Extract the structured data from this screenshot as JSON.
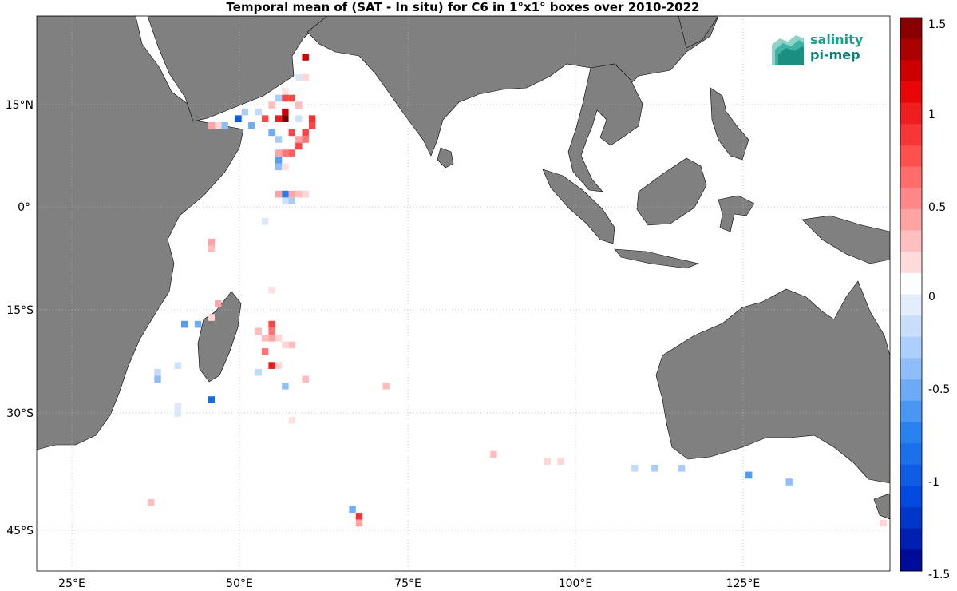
{
  "title": "Temporal mean of (SAT - In situ) for C6 in 1°x1° boxes over 2010-2022",
  "logo": {
    "line1": "salinity",
    "line2": "pi-mep"
  },
  "map_extent": {
    "lon_min": 20,
    "lon_max": 147,
    "lat_min": -51,
    "lat_max": 30
  },
  "lon_ticks": [
    {
      "value": 25,
      "label": "25°E"
    },
    {
      "value": 50,
      "label": "50°E"
    },
    {
      "value": 75,
      "label": "75°E"
    },
    {
      "value": 100,
      "label": "100°E"
    },
    {
      "value": 125,
      "label": "125°E"
    }
  ],
  "lat_ticks": [
    {
      "value": 15,
      "label": "15°N"
    },
    {
      "value": 0,
      "label": "0°"
    },
    {
      "value": -15,
      "label": "15°S"
    },
    {
      "value": -30,
      "label": "30°S"
    },
    {
      "value": -45,
      "label": "45°S"
    }
  ],
  "colorbar": {
    "min": -1.5,
    "max": 1.5,
    "ticks": [
      {
        "value": 1.5,
        "label": "1.5"
      },
      {
        "value": 1,
        "label": "1"
      },
      {
        "value": 0.5,
        "label": "0.5"
      },
      {
        "value": 0,
        "label": "0"
      },
      {
        "value": -0.5,
        "label": "-0.5"
      },
      {
        "value": -1,
        "label": "-1"
      },
      {
        "value": -1.5,
        "label": "-1.5"
      }
    ]
  },
  "colors": {
    "land": "#808080",
    "ocean": "#ffffff",
    "grid": "#b0b0b0"
  },
  "chart_data": {
    "type": "heatmap",
    "title": "Temporal mean of (SAT - In situ) for C6 in 1°x1° boxes over 2010-2022",
    "xlabel": "",
    "ylabel": "",
    "xlim": [
      20,
      147
    ],
    "ylim": [
      -51,
      30
    ],
    "clim": [
      -1.5,
      1.5
    ],
    "grid": true,
    "points": [
      {
        "lon": 60,
        "lat": 24,
        "v": 1.2
      },
      {
        "lon": 59,
        "lat": 21,
        "v": -0.1
      },
      {
        "lon": 60,
        "lat": 21,
        "v": 0.2
      },
      {
        "lon": 57,
        "lat": 19,
        "v": 0.15
      },
      {
        "lon": 56,
        "lat": 18,
        "v": -0.3
      },
      {
        "lon": 57,
        "lat": 18,
        "v": 0.8
      },
      {
        "lon": 58,
        "lat": 18,
        "v": 0.8
      },
      {
        "lon": 59,
        "lat": 17,
        "v": 0.3
      },
      {
        "lon": 55,
        "lat": 17,
        "v": 0.3
      },
      {
        "lon": 51,
        "lat": 16,
        "v": -0.3
      },
      {
        "lon": 53,
        "lat": 16,
        "v": -0.2
      },
      {
        "lon": 56,
        "lat": 15,
        "v": 1.0
      },
      {
        "lon": 57,
        "lat": 16,
        "v": 1.2
      },
      {
        "lon": 57,
        "lat": 15,
        "v": 1.5
      },
      {
        "lon": 54,
        "lat": 15,
        "v": 0.8
      },
      {
        "lon": 59,
        "lat": 15,
        "v": -0.15
      },
      {
        "lon": 61,
        "lat": 15,
        "v": 0.9
      },
      {
        "lon": 61,
        "lat": 14,
        "v": 0.8
      },
      {
        "lon": 50,
        "lat": 15,
        "v": -1.0
      },
      {
        "lon": 48,
        "lat": 14,
        "v": -0.4
      },
      {
        "lon": 47,
        "lat": 14,
        "v": 0.2
      },
      {
        "lon": 46,
        "lat": 14,
        "v": 0.4
      },
      {
        "lon": 52,
        "lat": 14,
        "v": -0.5
      },
      {
        "lon": 55,
        "lat": 13,
        "v": -0.5
      },
      {
        "lon": 58,
        "lat": 13,
        "v": 0.8
      },
      {
        "lon": 60,
        "lat": 13,
        "v": 0.8
      },
      {
        "lon": 59,
        "lat": 12,
        "v": 0.4
      },
      {
        "lon": 60,
        "lat": 12,
        "v": 0.6
      },
      {
        "lon": 56,
        "lat": 12,
        "v": -0.3
      },
      {
        "lon": 59,
        "lat": 11,
        "v": 0.8
      },
      {
        "lon": 58,
        "lat": 10,
        "v": 0.7
      },
      {
        "lon": 57,
        "lat": 10,
        "v": 0.6
      },
      {
        "lon": 56,
        "lat": 10,
        "v": 0.4
      },
      {
        "lon": 56,
        "lat": 9,
        "v": -0.6
      },
      {
        "lon": 56,
        "lat": 8,
        "v": -0.4
      },
      {
        "lon": 57,
        "lat": 8,
        "v": 0.15
      },
      {
        "lon": 56,
        "lat": 4,
        "v": 0.4
      },
      {
        "lon": 57,
        "lat": 4,
        "v": -0.8
      },
      {
        "lon": 58,
        "lat": 4,
        "v": 0.4
      },
      {
        "lon": 59,
        "lat": 4,
        "v": 0.3
      },
      {
        "lon": 60,
        "lat": 4,
        "v": 0.2
      },
      {
        "lon": 57,
        "lat": 3,
        "v": -0.15
      },
      {
        "lon": 58,
        "lat": 3,
        "v": -0.3
      },
      {
        "lon": 54,
        "lat": 0,
        "v": -0.1
      },
      {
        "lon": 46,
        "lat": -3,
        "v": 0.4
      },
      {
        "lon": 46,
        "lat": -4,
        "v": 0.3
      },
      {
        "lon": 55,
        "lat": -10,
        "v": 0.15
      },
      {
        "lon": 47,
        "lat": -12,
        "v": 0.4
      },
      {
        "lon": 46,
        "lat": -14,
        "v": 0.2
      },
      {
        "lon": 42,
        "lat": -15,
        "v": -0.6
      },
      {
        "lon": 44,
        "lat": -15,
        "v": -0.5
      },
      {
        "lon": 55,
        "lat": -15,
        "v": 0.8
      },
      {
        "lon": 55,
        "lat": -16,
        "v": 0.6
      },
      {
        "lon": 53,
        "lat": -16,
        "v": 0.3
      },
      {
        "lon": 54,
        "lat": -17,
        "v": 0.3
      },
      {
        "lon": 55,
        "lat": -17,
        "v": 0.4
      },
      {
        "lon": 56,
        "lat": -17,
        "v": 0.2
      },
      {
        "lon": 57,
        "lat": -18,
        "v": 0.2
      },
      {
        "lon": 58,
        "lat": -18,
        "v": 0.3
      },
      {
        "lon": 54,
        "lat": -19,
        "v": 0.6
      },
      {
        "lon": 55,
        "lat": -21,
        "v": 1.0
      },
      {
        "lon": 56,
        "lat": -21,
        "v": 0.2
      },
      {
        "lon": 53,
        "lat": -22,
        "v": -0.2
      },
      {
        "lon": 41,
        "lat": -21,
        "v": -0.15
      },
      {
        "lon": 38,
        "lat": -22,
        "v": -0.2
      },
      {
        "lon": 38,
        "lat": -23,
        "v": -0.4
      },
      {
        "lon": 60,
        "lat": -23,
        "v": 0.3
      },
      {
        "lon": 57,
        "lat": -24,
        "v": -0.4
      },
      {
        "lon": 72,
        "lat": -24,
        "v": 0.3
      },
      {
        "lon": 46,
        "lat": -26,
        "v": -0.9
      },
      {
        "lon": 41,
        "lat": -27,
        "v": -0.1
      },
      {
        "lon": 41,
        "lat": -28,
        "v": -0.1
      },
      {
        "lon": 58,
        "lat": -29,
        "v": 0.15
      },
      {
        "lon": 88,
        "lat": -34,
        "v": 0.3
      },
      {
        "lon": 96,
        "lat": -35,
        "v": 0.2
      },
      {
        "lon": 98,
        "lat": -35,
        "v": 0.2
      },
      {
        "lon": 109,
        "lat": -36,
        "v": -0.2
      },
      {
        "lon": 112,
        "lat": -36,
        "v": -0.3
      },
      {
        "lon": 116,
        "lat": -36,
        "v": -0.3
      },
      {
        "lon": 126,
        "lat": -37,
        "v": -0.6
      },
      {
        "lon": 132,
        "lat": -38,
        "v": -0.4
      },
      {
        "lon": 37,
        "lat": -41,
        "v": 0.3
      },
      {
        "lon": 67,
        "lat": -42,
        "v": -0.5
      },
      {
        "lon": 68,
        "lat": -43,
        "v": 0.9
      },
      {
        "lon": 68,
        "lat": -44,
        "v": 0.4
      },
      {
        "lon": 146,
        "lat": -44,
        "v": 0.2
      }
    ]
  }
}
